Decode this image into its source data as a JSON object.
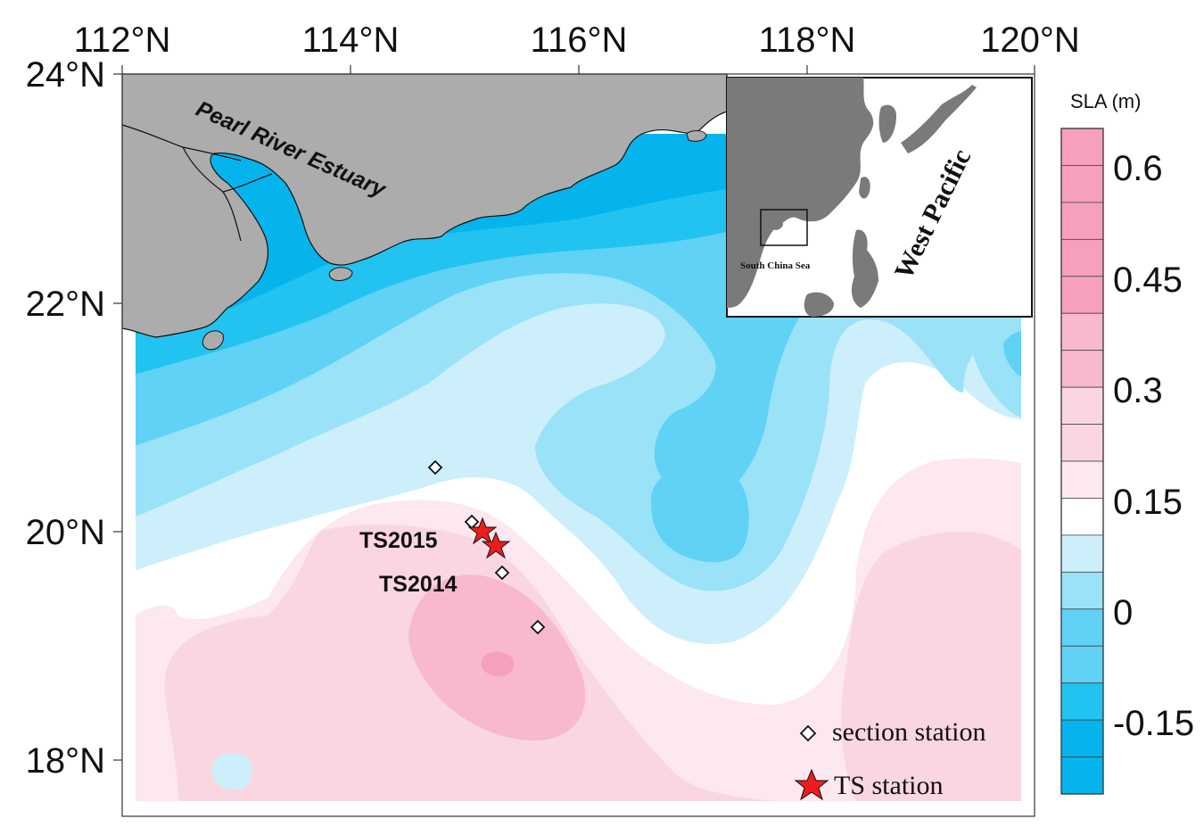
{
  "map": {
    "x_ticks": [
      "112°N",
      "114°N",
      "116°N",
      "118°N",
      "120°N"
    ],
    "y_ticks": [
      "24°N",
      "22°N",
      "20°N",
      "18°N"
    ]
  },
  "labels": {
    "estuary": "Pearl River Estuary",
    "ts2015": "TS2015",
    "ts2014": "TS2014"
  },
  "inset": {
    "ocean_label": "West Pacific",
    "sea_label": "South China Sea"
  },
  "legend": {
    "section_station": "section station",
    "ts_station": "TS station"
  },
  "colorbar": {
    "title": "SLA (m)",
    "tick_labels": [
      "0.6",
      "0.45",
      "0.3",
      "0.15",
      "0",
      "-0.15"
    ],
    "levels": 18,
    "colors": {
      "pink_dark": "#f6a0bd",
      "pink_mid": "#f8b8cd",
      "pink_light": "#fad6e0",
      "pink_pale": "#fce8ee",
      "white": "#ffffff",
      "blue_pale": "#cdeffb",
      "blue_light": "#9ae2f8",
      "blue_mid": "#5fd2f6",
      "blue_dark": "#22c3f0",
      "blue_deep": "#05b4ec",
      "land": "#acacac",
      "ts_star": "#ee1c1c"
    }
  }
}
